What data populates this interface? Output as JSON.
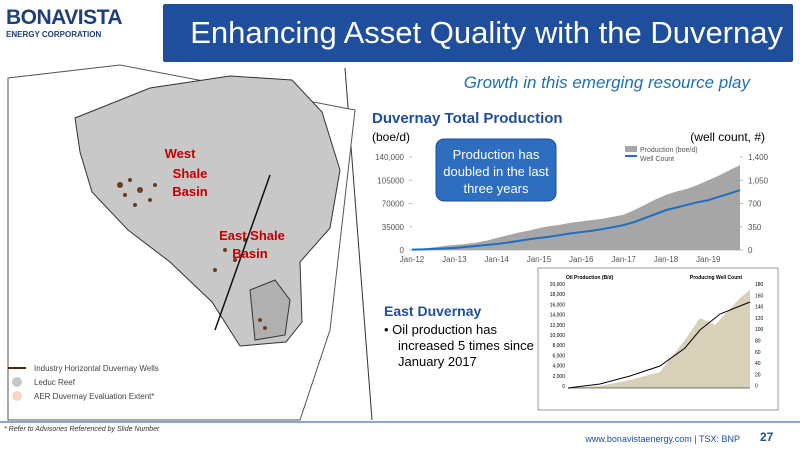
{
  "header": {
    "logo_name": "BONAVISTA",
    "logo_subtitle": "ENERGY CORPORATION",
    "title": "Enhancing Asset Quality with the Duvernay",
    "subtitle": "Growth in this emerging resource play"
  },
  "map": {
    "labels": [
      [
        "West",
        "Shale",
        "Basin"
      ],
      [
        "East Shale",
        "Basin"
      ]
    ],
    "legend": [
      "Industry Horizontal Duvernay Wells",
      "Leduc Reef",
      "AER Duvernay Evaluation Extent*"
    ]
  },
  "chart_data": {
    "type": "area-line",
    "title": "Duvernay Total Production",
    "y_label": "(boe/d)",
    "y2_label": "(well count, #)",
    "annotation": "Production has doubled in the last three years",
    "categories": [
      "Jan-12",
      null,
      null,
      null,
      "Jan-13",
      null,
      null,
      null,
      "Jan-14",
      null,
      null,
      null,
      "Jan-15",
      null,
      null,
      null,
      "Jan-16",
      null,
      null,
      null,
      "Jan-17",
      null,
      null,
      null,
      "Jan-18",
      null,
      null,
      null,
      "Jan-19",
      null,
      null,
      null
    ],
    "series": [
      {
        "name": "Production (boe/d)",
        "color": "#a6a6a6",
        "values": [
          1000,
          2000,
          4000,
          6000,
          7500,
          9000,
          11000,
          14000,
          18000,
          22000,
          26000,
          29000,
          33000,
          36000,
          38000,
          41000,
          43000,
          45000,
          47000,
          50000,
          53000,
          60000,
          68000,
          76000,
          83000,
          88000,
          92000,
          98000,
          105000,
          112000,
          120000,
          128000
        ]
      },
      {
        "name": "Well Count",
        "color": "#1f6fc0",
        "axis": "y2",
        "values": [
          5,
          10,
          15,
          22,
          30,
          45,
          60,
          75,
          90,
          110,
          135,
          160,
          180,
          200,
          225,
          250,
          270,
          290,
          315,
          345,
          375,
          420,
          480,
          540,
          600,
          640,
          680,
          720,
          750,
          800,
          850,
          900
        ]
      }
    ],
    "ylim": [
      0,
      140000
    ],
    "yticks": [
      0,
      35000,
      70000,
      105000,
      {
        "value": 140000,
        "label": "140,000"
      }
    ],
    "y2lim": [
      0,
      1400
    ],
    "y2ticks": [
      0,
      350,
      700,
      {
        "value": 1050,
        "label": "1,050"
      },
      {
        "value": 1400,
        "label": "1,400"
      }
    ],
    "grid": false
  },
  "inset": {
    "title": "Oil Production (B/d)",
    "title2": "Producing Well Count",
    "yticks": [
      "20,000",
      "18,000",
      "16,000",
      "14,000",
      "12,000",
      "10,000",
      "8,000",
      "6,000",
      "4,000",
      "2,000",
      "0"
    ],
    "y2ticks": [
      "180",
      "160",
      "140",
      "120",
      "100",
      "80",
      "60",
      "40",
      "20",
      "0"
    ]
  },
  "east_duvernay": {
    "heading": "East Duvernay",
    "bullet": "Oil production has increased 5 times since January 2017"
  },
  "footer": {
    "footnote": "* Refer to Advisories Referenced by Slide Number",
    "site": "www.bonavistaenergy.com  |  TSX: BNP",
    "page": "27"
  }
}
